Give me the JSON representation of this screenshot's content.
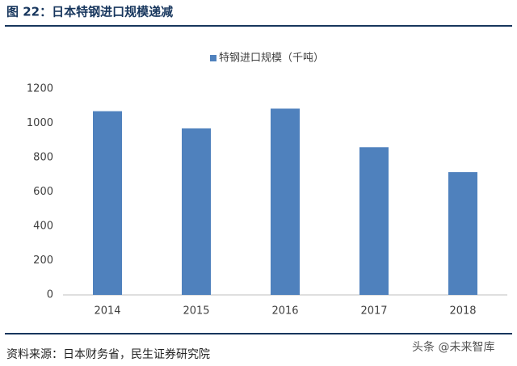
{
  "chart_data": {
    "type": "bar",
    "title": "图 22：日本特钢进口规模递减",
    "categories": [
      "2014",
      "2015",
      "2016",
      "2017",
      "2018"
    ],
    "series": [
      {
        "name": "特钢进口规模（千吨）",
        "color": "#4f81bd",
        "values": [
          1070,
          970,
          1085,
          860,
          715
        ]
      }
    ],
    "ylim": [
      0,
      1200
    ],
    "yticks": [
      0,
      200,
      400,
      600,
      800,
      1000,
      1200
    ],
    "grid": false,
    "legend": "top",
    "source": "资料来源：日本财务省，民生证券研究院",
    "watermark": "头条 @未来智库"
  }
}
